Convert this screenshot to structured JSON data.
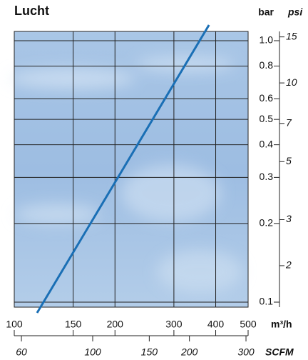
{
  "chart_data": {
    "type": "line",
    "title": "Lucht",
    "y_label": "bar",
    "y2_label": "psi",
    "x_label": "m³/h",
    "x2_label": "SCFM",
    "log_x": true,
    "log_y": true,
    "grid": true,
    "xlim": [
      100,
      500
    ],
    "xticks": [
      100,
      150,
      200,
      300,
      400,
      500
    ],
    "x2lim": [
      57,
      304.6
    ],
    "x2ticks": [
      60,
      100,
      150,
      200,
      300
    ],
    "ylim": [
      0.0957,
      1.085
    ],
    "yticks": [
      {
        "value": 1,
        "label": "1.0"
      },
      0.8,
      0.6,
      0.5,
      0.4,
      0.3,
      0.2,
      0.1
    ],
    "y2lim": [
      1.388,
      15.74
    ],
    "y2ticks": [
      15,
      10,
      7,
      5,
      3,
      2
    ],
    "x": [
      117,
      382
    ],
    "series": [
      {
        "color": "#1a6fb5",
        "values": [
          0.091,
          1.148
        ]
      }
    ]
  }
}
